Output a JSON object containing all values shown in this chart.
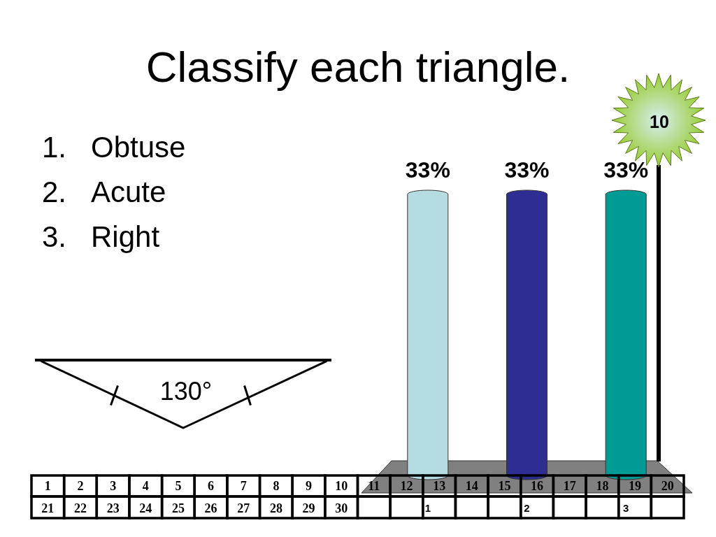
{
  "chart_data": {
    "type": "bar",
    "title": "Classify each triangle.",
    "categories": [
      "1",
      "2",
      "3"
    ],
    "values": [
      33,
      33,
      33
    ],
    "colors": [
      "#b5dde1",
      "#2e2e92",
      "#009b94"
    ],
    "value_labels": [
      "33%",
      "33%",
      "33%"
    ],
    "annotations": [
      "1. Obtuse",
      "2. Acute",
      "3. Right",
      "130°",
      "10",
      "1",
      "2",
      "3",
      "4",
      "5",
      "6",
      "7",
      "8",
      "9",
      "10",
      "11",
      "12",
      "13",
      "14",
      "15",
      "16",
      "17",
      "18",
      "19",
      "20",
      "21",
      "22",
      "23",
      "24",
      "25",
      "26",
      "27",
      "28",
      "29",
      "30"
    ]
  }
}
